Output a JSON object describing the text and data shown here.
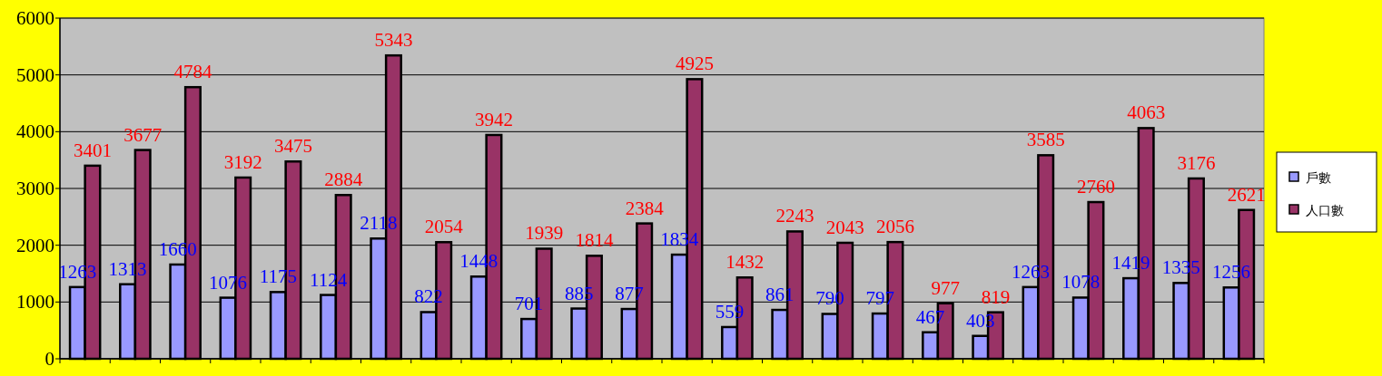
{
  "chart_data": {
    "type": "bar",
    "categories": [
      null,
      null,
      null,
      null,
      null,
      null,
      null,
      null,
      null,
      null,
      null,
      null,
      null,
      null,
      null,
      null,
      null,
      null,
      null,
      null,
      null,
      null,
      null,
      null
    ],
    "series": [
      {
        "name": "戶數",
        "color": "#9999ff",
        "values": [
          1263,
          1313,
          1660,
          1076,
          1175,
          1124,
          2118,
          822,
          1448,
          701,
          885,
          877,
          1834,
          559,
          861,
          790,
          797,
          467,
          403,
          1263,
          1078,
          1419,
          1335,
          1256
        ]
      },
      {
        "name": "人口數",
        "color": "#993366",
        "values": [
          3401,
          3677,
          4784,
          3192,
          3475,
          2884,
          5343,
          2054,
          3942,
          1939,
          1814,
          2384,
          4925,
          1432,
          2243,
          2043,
          2056,
          977,
          819,
          3585,
          2760,
          4063,
          3176,
          2621
        ]
      }
    ],
    "ylim": [
      0,
      6000
    ],
    "yticks": [
      0,
      1000,
      2000,
      3000,
      4000,
      5000,
      6000
    ],
    "grid": "y",
    "legend": "right",
    "data_labels": true
  }
}
